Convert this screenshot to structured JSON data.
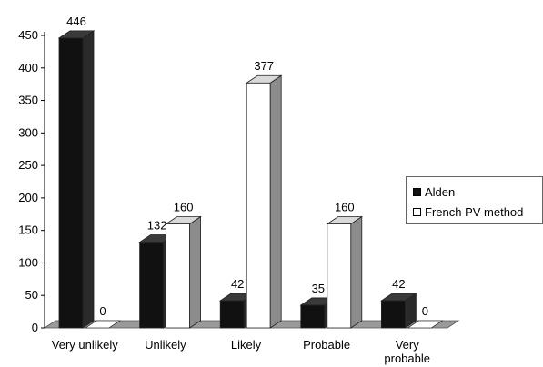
{
  "chart_data": {
    "type": "bar",
    "categories": [
      "Very unlikely",
      "Unlikely",
      "Likely",
      "Probable",
      "Very probable"
    ],
    "series": [
      {
        "name": "Alden",
        "values": [
          446,
          132,
          42,
          35,
          42
        ],
        "color": "#111111"
      },
      {
        "name": "French PV method",
        "values": [
          0,
          160,
          377,
          160,
          0
        ],
        "color": "#ffffff"
      }
    ],
    "yticks": [
      0,
      50,
      100,
      150,
      200,
      250,
      300,
      350,
      400,
      450
    ],
    "ylim": [
      0,
      450
    ],
    "grid": false,
    "legend_position": "right",
    "style": "3d-bar"
  }
}
